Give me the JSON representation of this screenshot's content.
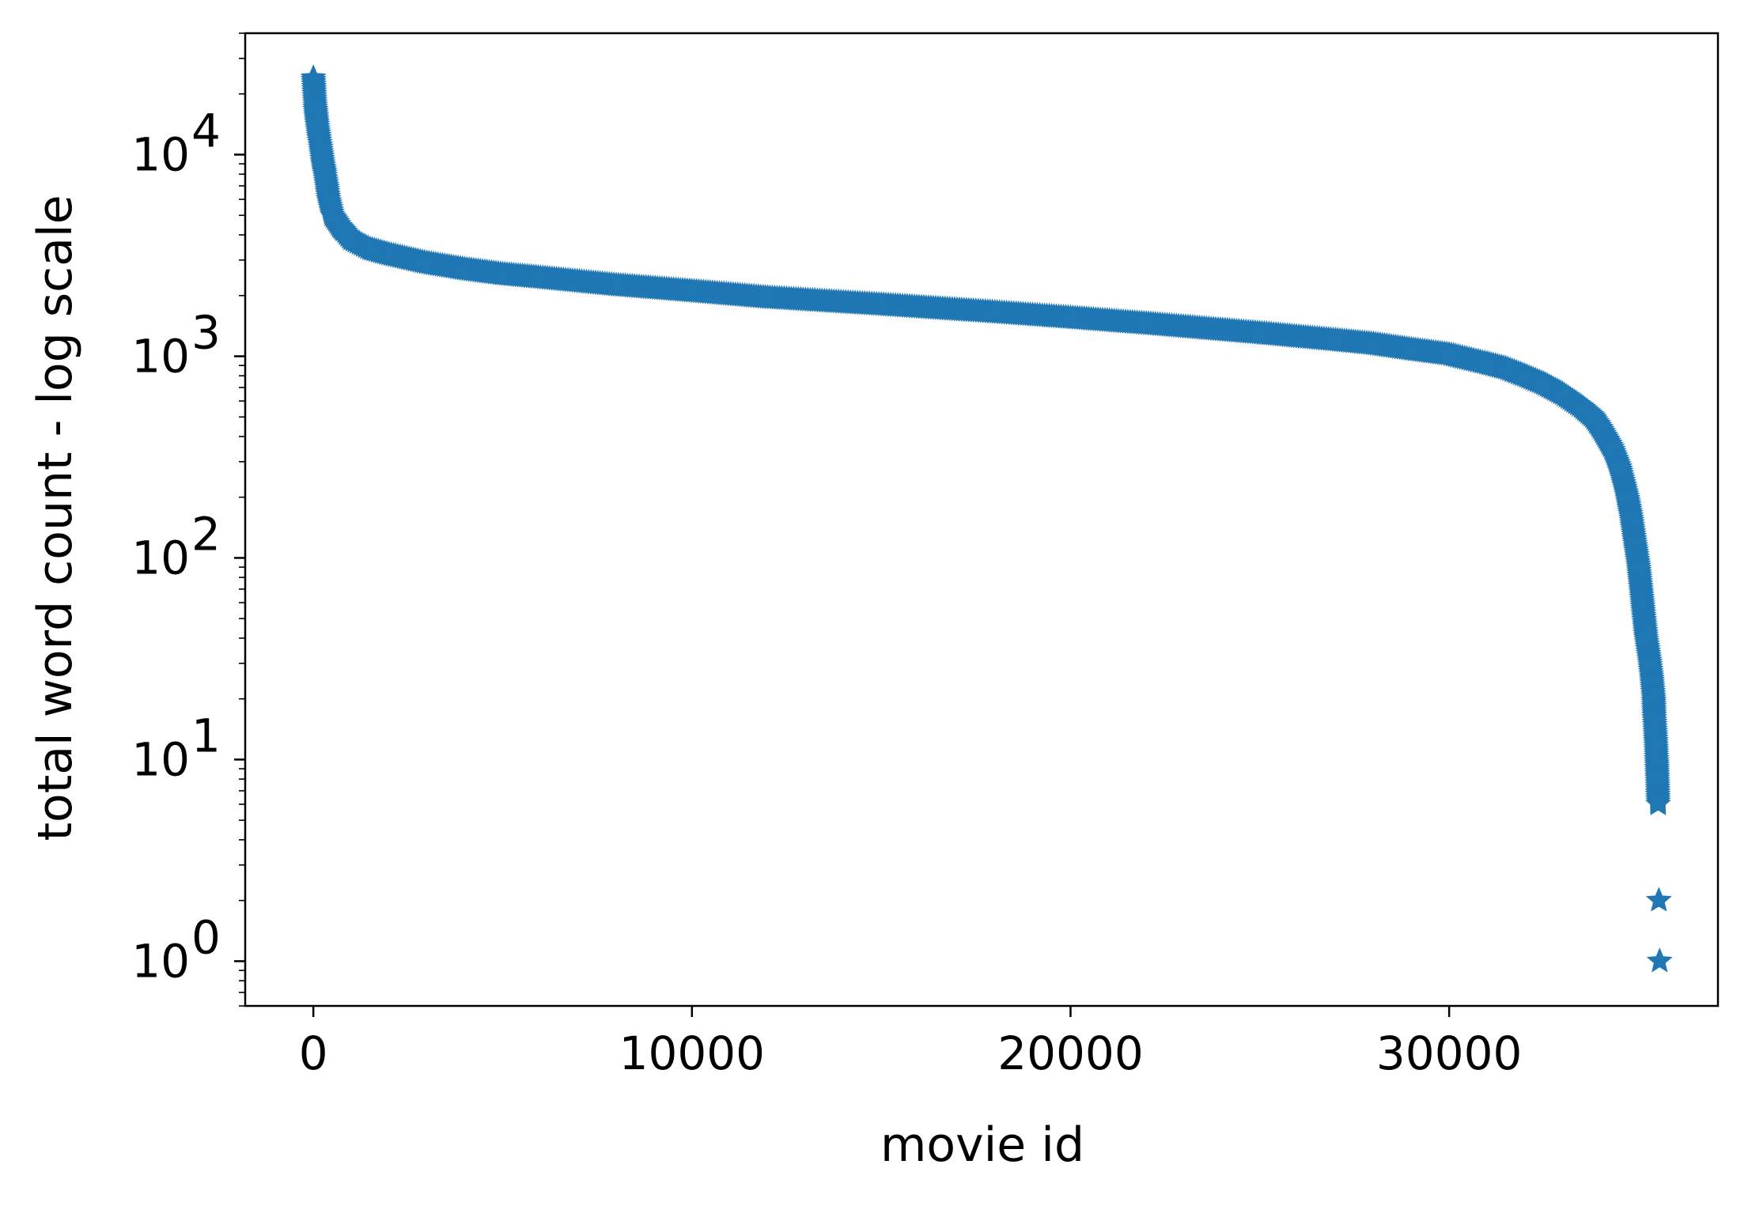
{
  "chart_data": {
    "type": "scatter",
    "title": "",
    "xlabel": "movie id",
    "ylabel": "total word count - log scale",
    "y_scale": "log",
    "xlim": [
      -1800,
      37100
    ],
    "ylim": [
      0.6,
      40000
    ],
    "grid": false,
    "legend": "none",
    "marker": "star",
    "color": "#1f77b4",
    "x_ticks": [
      {
        "value": 0,
        "label": "0"
      },
      {
        "value": 10000,
        "label": "10000"
      },
      {
        "value": 20000,
        "label": "20000"
      },
      {
        "value": 30000,
        "label": "30000"
      }
    ],
    "y_ticks": [
      {
        "value": 1,
        "base": "10",
        "exp": "0"
      },
      {
        "value": 10,
        "base": "10",
        "exp": "1"
      },
      {
        "value": 100,
        "base": "10",
        "exp": "2"
      },
      {
        "value": 1000,
        "base": "10",
        "exp": "3"
      },
      {
        "value": 10000,
        "base": "10",
        "exp": "4"
      }
    ],
    "series": [
      {
        "x": [
          0,
          50,
          100,
          150,
          200,
          250,
          300,
          350,
          400,
          500,
          600,
          700,
          800,
          1000,
          1500,
          2000,
          3000,
          4000,
          5000,
          6000,
          8000,
          10000,
          12000,
          15000,
          18000,
          20000,
          22000,
          25000,
          27000,
          28000,
          29000,
          30000,
          31000,
          31500,
          32000,
          32500,
          33000,
          33500,
          33800,
          34000,
          34300,
          34500,
          34700,
          34800,
          34900,
          35000,
          35100,
          35200,
          35300,
          35350,
          35400,
          35420,
          35440,
          35460,
          35480,
          35500,
          35520,
          35540,
          35560
        ],
        "y": [
          24000,
          17000,
          14000,
          12000,
          10500,
          9000,
          8000,
          7000,
          6000,
          5000,
          4700,
          4400,
          4200,
          3800,
          3400,
          3200,
          2900,
          2700,
          2550,
          2450,
          2250,
          2100,
          1950,
          1800,
          1650,
          1550,
          1450,
          1300,
          1200,
          1150,
          1080,
          1020,
          920,
          870,
          800,
          730,
          650,
          560,
          500,
          440,
          350,
          280,
          200,
          160,
          120,
          90,
          60,
          40,
          30,
          25,
          20,
          16,
          14,
          12,
          10,
          8,
          6,
          2,
          1
        ]
      }
    ]
  }
}
